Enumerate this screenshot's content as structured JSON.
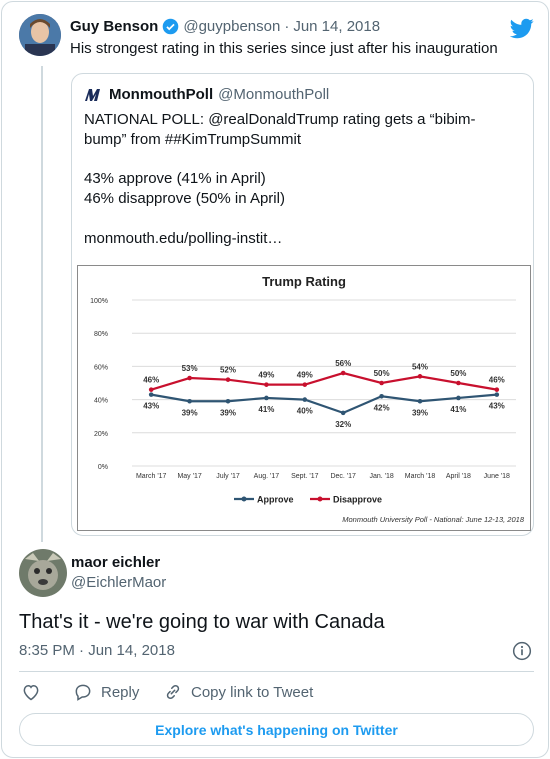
{
  "tweet": {
    "author_name": "Guy Benson",
    "author_handle": "@guypbenson",
    "date": "Jun 14, 2018",
    "text": "His strongest rating in this series since just after his inauguration"
  },
  "quoted": {
    "author_name": "MonmouthPoll",
    "author_handle": "@MonmouthPoll",
    "line1": "NATIONAL POLL:  @realDonaldTrump rating gets a “bibim-",
    "line2": "bump” from ##KimTrumpSummit",
    "line3": "43% approve (41% in April)",
    "line4": "46% disapprove (50% in April)",
    "line5": "monmouth.edu/polling-instit…"
  },
  "reply": {
    "author_name": "maor eichler",
    "author_handle": "@EichlerMaor",
    "text": "That's it - we're going to war with Canada",
    "timestamp": "8:35 PM · Jun 14, 2018"
  },
  "actions": {
    "reply_label": "Reply",
    "copy_label": "Copy link to Tweet",
    "explore_label": "Explore what's happening on Twitter"
  },
  "colors": {
    "twitter_blue": "#1d9bf0",
    "approve": "#2f5573",
    "disapprove": "#c8102e"
  },
  "chart_data": {
    "type": "line",
    "title": "Trump Rating",
    "categories": [
      "March '17",
      "May '17",
      "July '17",
      "Aug. '17",
      "Sept. '17",
      "Dec. '17",
      "Jan. '18",
      "March '18",
      "April '18",
      "June '18"
    ],
    "series": [
      {
        "name": "Approve",
        "values": [
          43,
          39,
          39,
          41,
          40,
          32,
          42,
          39,
          41,
          43
        ]
      },
      {
        "name": "Disapprove",
        "values": [
          46,
          53,
          52,
          49,
          49,
          56,
          50,
          54,
          50,
          46
        ]
      }
    ],
    "yticks": [
      "0%",
      "20%",
      "40%",
      "60%",
      "80%",
      "100%"
    ],
    "ylim": [
      0,
      100
    ],
    "grid": true,
    "legend": "bottom",
    "source": "Monmouth University Poll - National: June 12-13, 2018"
  }
}
